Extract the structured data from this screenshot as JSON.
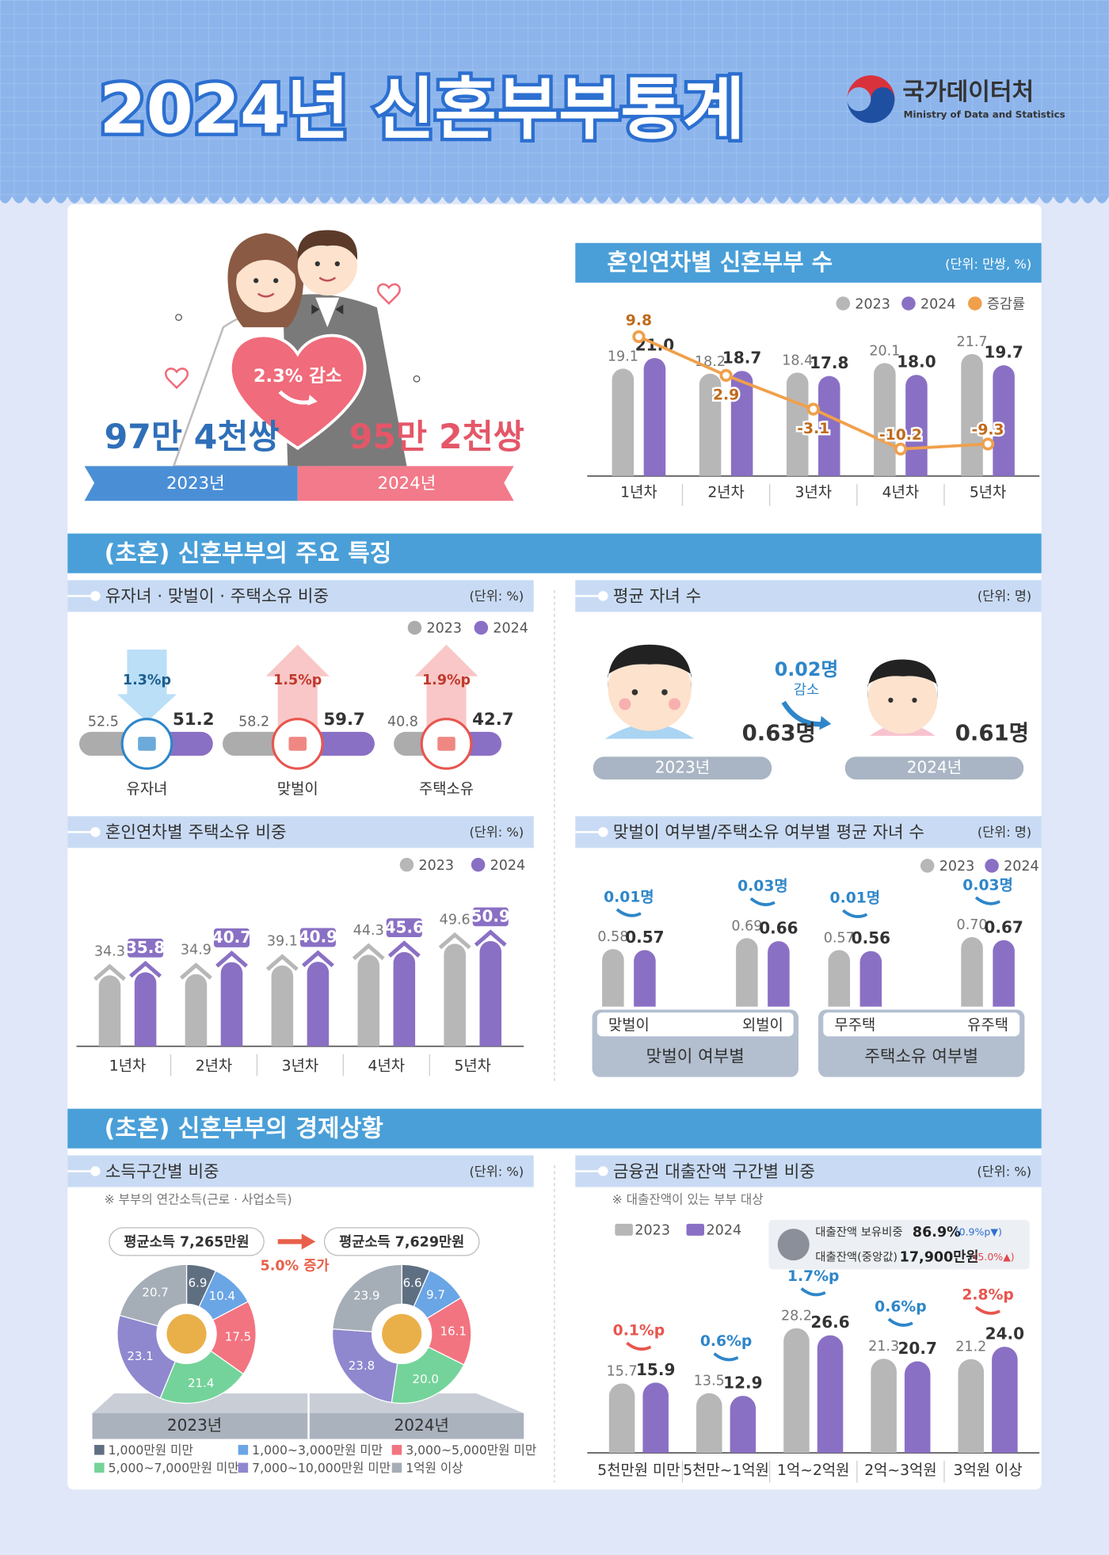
{
  "header": {
    "title": "2024년 신혼부부통계",
    "org": "국가데이터처",
    "org_en": "Ministry of Data and Statistics"
  },
  "summary": {
    "before": "97만 4천쌍",
    "after": "95만 2천쌍",
    "change": "2.3% 감소",
    "year_before": "2023년",
    "year_after": "2024년"
  },
  "sections": [
    "(초혼) 신혼부부의 주요 특징",
    "(초혼) 신혼부부의 경제상황"
  ],
  "avg_children": {
    "title": "평균 자녀 수",
    "unit": "(단위: 명)",
    "before": "0.63명",
    "after": "0.61명",
    "year_before": "2023년",
    "year_after": "2024년",
    "change": "0.02명",
    "change_word": "감소"
  },
  "loan_summary": [
    {
      "label": "대출잔액 보유비중",
      "value": "86.9%",
      "change": "(0.9%p▼)",
      "color": "#2e6fd0"
    },
    {
      "label": "대출잔액(중앙값)",
      "value": "17,900만원",
      "change": "(5.0%▲)",
      "color": "#e0474c"
    }
  ],
  "chart_data": [
    {
      "type": "bar",
      "title": "혼인연차별 신혼부부 수",
      "unit": "(단위: 만쌍, %)",
      "categories": [
        "1년차",
        "2년차",
        "3년차",
        "4년차",
        "5년차"
      ],
      "series": [
        {
          "name": "2023",
          "color": "#b7b7b7",
          "values": [
            19.1,
            18.2,
            18.4,
            20.1,
            21.7
          ]
        },
        {
          "name": "2024",
          "color": "#8a70c4",
          "values": [
            21,
            18.7,
            17.8,
            18,
            19.7
          ],
          "value_labels": [
            "21.0",
            "18.7",
            "17.8",
            "18.0",
            "19.7"
          ]
        },
        {
          "name": "증감률",
          "type": "line",
          "axis": "y2",
          "color": "#f0a04b",
          "values": [
            9.8,
            2.9,
            -3.1,
            -10.2,
            -9.3
          ]
        }
      ],
      "ylim": [
        0,
        30
      ],
      "y2lim": [
        -15,
        15
      ]
    },
    {
      "type": "pill",
      "title": "유자녀 · 맞벌이 · 주택소유 비중",
      "unit": "(단위: %)",
      "categories": [
        "유자녀",
        "맞벌이",
        "주택소유"
      ],
      "series": [
        {
          "name": "2023",
          "color": "#acacac",
          "values": [
            52.5,
            58.2,
            40.8
          ]
        },
        {
          "name": "2024",
          "color": "#8a70c4",
          "values": [
            51.2,
            59.7,
            42.7
          ]
        }
      ],
      "change_labels": [
        "1.3%p",
        "1.5%p",
        "1.9%p"
      ],
      "change_colors": [
        "#2e86c9",
        "#e8554e",
        "#e8554e"
      ],
      "xlim": [
        0,
        100
      ]
    },
    {
      "type": "bar",
      "title": "혼인연차별 주택소유 비중",
      "unit": "(단위: %)",
      "categories": [
        "1년차",
        "2년차",
        "3년차",
        "4년차",
        "5년차"
      ],
      "series": [
        {
          "name": "2023",
          "color": "#b7b7b7",
          "values": [
            34.3,
            34.9,
            39.1,
            44.3,
            49.6
          ]
        },
        {
          "name": "2024",
          "color": "#8a70c4",
          "values": [
            35.8,
            40.7,
            40.9,
            45.6,
            50.9
          ]
        }
      ],
      "ylim": [
        0,
        60
      ]
    },
    {
      "type": "bar",
      "title": "맞벌이 여부별/주택소유 여부별 평균 자녀 수",
      "unit": "(단위: 명)",
      "groups": [
        "맞벌이 여부별",
        "주택소유 여부별"
      ],
      "categories": [
        "맞벌이",
        "외벌이",
        "무주택",
        "유주택"
      ],
      "series": [
        {
          "name": "2023",
          "color": "#b7b7b7",
          "values": [
            0.58,
            0.69,
            0.57,
            0.7
          ],
          "value_labels": [
            "0.58",
            "0.69",
            "0.57",
            "0.70"
          ]
        },
        {
          "name": "2024",
          "color": "#8a70c4",
          "values": [
            0.57,
            0.66,
            0.56,
            0.67
          ]
        }
      ],
      "change_labels": [
        "0.01명",
        "0.03명",
        "0.01명",
        "0.03명"
      ],
      "change_colors": [
        "#2e86c9",
        "#2e86c9",
        "#2e86c9",
        "#2e86c9"
      ],
      "ylim": [
        0,
        1
      ]
    },
    {
      "type": "donut",
      "title": "소득구간별 비중",
      "unit": "(단위: %)",
      "note": "※ 부부의 연간소득(근로 · 사업소득)",
      "categories": [
        "1,000만원 미만",
        "1,000~3,000만원 미만",
        "3,000~5,000만원 미만",
        "5,000~7,000만원 미만",
        "7,000~10,000만원 미만",
        "1억원 이상"
      ],
      "colors": [
        "#5f6f82",
        "#6aa5e6",
        "#f27480",
        "#74d39a",
        "#8f88cf",
        "#a5adb7"
      ],
      "series": [
        {
          "name": "2023년",
          "values": [
            6.9,
            10.4,
            17.5,
            21.4,
            23.1,
            20.7
          ],
          "average": "평균소득 7,265만원"
        },
        {
          "name": "2024년",
          "values": [
            6.6,
            9.7,
            16.1,
            20,
            23.8,
            23.9
          ],
          "value_labels": [
            "6.6",
            "9.7",
            "16.1",
            "20.0",
            "23.8",
            "23.9"
          ],
          "average": "평균소득 7,629만원"
        }
      ],
      "change": "5.0% 증가"
    },
    {
      "type": "bar",
      "title": "금융권 대출잔액 구간별 비중",
      "unit": "(단위: %)",
      "note": "※ 대출잔액이 있는 부부 대상",
      "categories": [
        "5천만원 미만",
        "5천만~1억원",
        "1억~2억원",
        "2억~3억원",
        "3억원 이상"
      ],
      "series": [
        {
          "name": "2023",
          "color": "#b7b7b7",
          "values": [
            15.7,
            13.5,
            28.2,
            21.3,
            21.2
          ]
        },
        {
          "name": "2024",
          "color": "#8a70c4",
          "values": [
            15.9,
            12.9,
            26.6,
            20.7,
            24
          ],
          "value_labels": [
            "15.9",
            "12.9",
            "26.6",
            "20.7",
            "24.0"
          ]
        }
      ],
      "change_labels": [
        "0.1%p",
        "0.6%p",
        "1.7%p",
        "0.6%p",
        "2.8%p"
      ],
      "change_colors": [
        "#e8554e",
        "#2e86c9",
        "#2e86c9",
        "#2e86c9",
        "#e8554e"
      ],
      "ylim": [
        0,
        35
      ]
    }
  ]
}
